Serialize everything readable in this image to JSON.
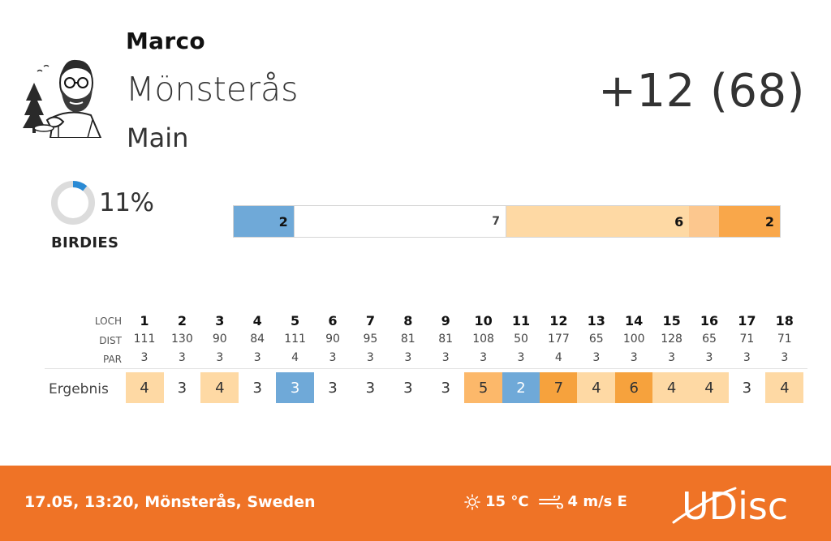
{
  "player": {
    "name": "Marco"
  },
  "course": {
    "name": "Mönsterås",
    "layout": "Main"
  },
  "score": {
    "text": "+12 (68)"
  },
  "stats": {
    "percent": "11%",
    "percent_value": 11,
    "label": "BIRDIES"
  },
  "distribution": [
    {
      "type": "birdie",
      "count": "2"
    },
    {
      "type": "par",
      "count": "7"
    },
    {
      "type": "bogey",
      "count": "6"
    },
    {
      "type": "double",
      "count": ""
    },
    {
      "type": "triple",
      "count": "2"
    }
  ],
  "scorecard": {
    "labels": {
      "hole": "LOCH",
      "dist": "DIST",
      "par": "PAR",
      "result": "Ergebnis"
    },
    "holes": [
      "1",
      "2",
      "3",
      "4",
      "5",
      "6",
      "7",
      "8",
      "9",
      "10",
      "11",
      "12",
      "13",
      "14",
      "15",
      "16",
      "17",
      "18"
    ],
    "dist": [
      "111",
      "130",
      "90",
      "84",
      "111",
      "90",
      "95",
      "81",
      "81",
      "108",
      "50",
      "177",
      "65",
      "100",
      "128",
      "65",
      "71",
      "71"
    ],
    "par": [
      "3",
      "3",
      "3",
      "3",
      "4",
      "3",
      "3",
      "3",
      "3",
      "3",
      "3",
      "4",
      "3",
      "3",
      "3",
      "3",
      "3",
      "3"
    ],
    "results": [
      "4",
      "3",
      "4",
      "3",
      "3",
      "3",
      "3",
      "3",
      "3",
      "5",
      "2",
      "7",
      "4",
      "6",
      "4",
      "4",
      "3",
      "4"
    ],
    "result_types": [
      "bogey",
      "par",
      "bogey",
      "par",
      "birdie",
      "par",
      "par",
      "par",
      "par",
      "dbl",
      "birdie",
      "triple",
      "bogey",
      "triple",
      "bogey",
      "bogey",
      "par",
      "bogey"
    ]
  },
  "footer": {
    "info": "17.05, 13:20, Mönsterås, Sweden",
    "temperature": "15 °C",
    "wind": "4 m/s E",
    "logo_text": "UDisc"
  },
  "colors": {
    "footer": "#ef7326",
    "birdie": "#6fa9d8",
    "bogey": "#fed9a4",
    "double": "#fcb86a",
    "triple": "#f6a23d"
  }
}
